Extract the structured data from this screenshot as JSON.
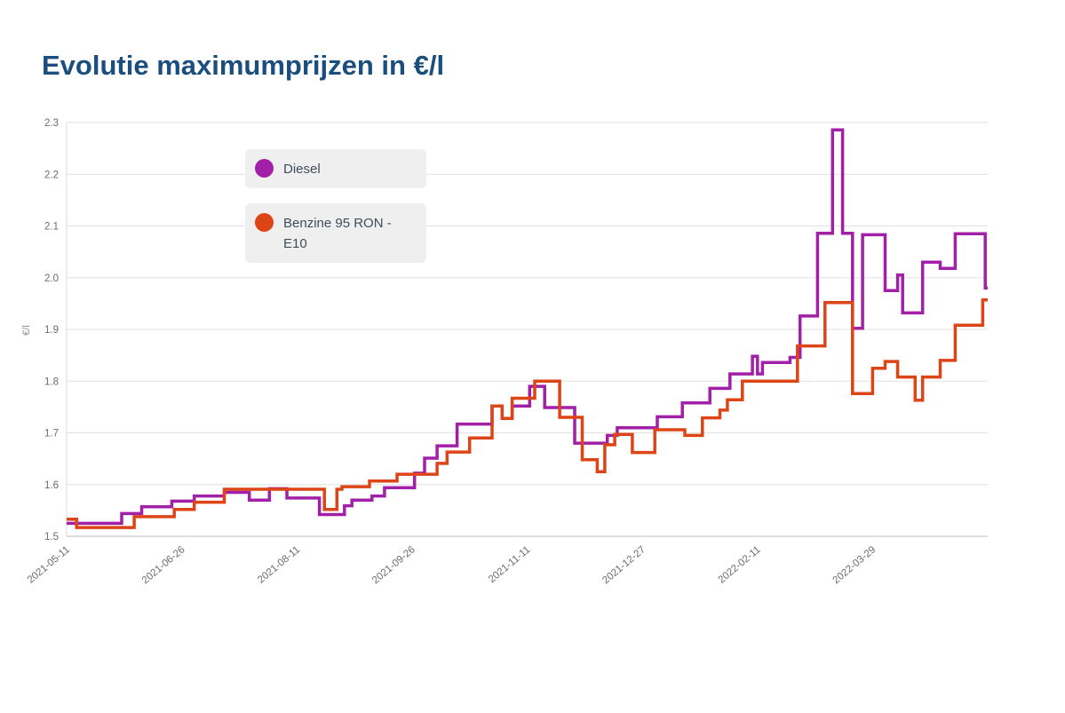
{
  "title": "Evolutie maximumprijzen in €/l",
  "legend": [
    {
      "label": "Diesel",
      "color": "#a21fa8"
    },
    {
      "label": "Benzine 95 RON - E10",
      "color": "#dd4517"
    }
  ],
  "chart_data": {
    "type": "line",
    "subtype": "step-after",
    "title": "Evolutie maximumprijzen in €/l",
    "xlabel": "",
    "ylabel": "€/l",
    "ylim": [
      1.5,
      2.3
    ],
    "ytick_step": 0.1,
    "grid": "horizontal",
    "legend_position": "top-left-inside",
    "x_unit": "days since 2021-05-11",
    "x_range_days": [
      0,
      368
    ],
    "xticks": [
      {
        "day": 0,
        "label": "2021-05-11"
      },
      {
        "day": 46,
        "label": "2021-06-26"
      },
      {
        "day": 92,
        "label": "2021-08-11"
      },
      {
        "day": 138,
        "label": "2021-09-26"
      },
      {
        "day": 184,
        "label": "2021-11-11"
      },
      {
        "day": 230,
        "label": "2021-12-27"
      },
      {
        "day": 276,
        "label": "2022-02-11"
      },
      {
        "day": 322,
        "label": "2022-03-29"
      }
    ],
    "series": [
      {
        "name": "Diesel",
        "color": "#a21fa8",
        "points": [
          [
            0,
            1.525
          ],
          [
            22,
            1.544
          ],
          [
            30,
            1.557
          ],
          [
            42,
            1.568
          ],
          [
            51,
            1.578
          ],
          [
            63,
            1.585
          ],
          [
            73,
            1.57
          ],
          [
            81,
            1.592
          ],
          [
            88,
            1.574
          ],
          [
            101,
            1.542
          ],
          [
            111,
            1.559
          ],
          [
            114,
            1.57
          ],
          [
            122,
            1.578
          ],
          [
            127,
            1.594
          ],
          [
            139,
            1.622
          ],
          [
            143,
            1.651
          ],
          [
            148,
            1.675
          ],
          [
            156,
            1.717
          ],
          [
            170,
            1.752
          ],
          [
            174,
            1.728
          ],
          [
            178,
            1.752
          ],
          [
            185,
            1.79
          ],
          [
            191,
            1.749
          ],
          [
            203,
            1.68
          ],
          [
            216,
            1.695
          ],
          [
            220,
            1.71
          ],
          [
            236,
            1.731
          ],
          [
            246,
            1.758
          ],
          [
            257,
            1.786
          ],
          [
            265,
            1.814
          ],
          [
            274,
            1.848
          ],
          [
            276,
            1.814
          ],
          [
            278,
            1.836
          ],
          [
            289,
            1.846
          ],
          [
            293,
            1.926
          ],
          [
            300,
            2.086
          ],
          [
            306,
            2.286
          ],
          [
            310,
            2.086
          ],
          [
            314,
            1.902
          ],
          [
            318,
            2.083
          ],
          [
            327,
            1.975
          ],
          [
            332,
            2.005
          ],
          [
            334,
            1.932
          ],
          [
            342,
            2.03
          ],
          [
            349,
            2.018
          ],
          [
            355,
            2.085
          ],
          [
            367,
            1.98
          ]
        ]
      },
      {
        "name": "Benzine 95 RON - E10",
        "color": "#dd4517",
        "points": [
          [
            0,
            1.533
          ],
          [
            4,
            1.517
          ],
          [
            27,
            1.538
          ],
          [
            43,
            1.552
          ],
          [
            51,
            1.566
          ],
          [
            63,
            1.591
          ],
          [
            103,
            1.552
          ],
          [
            108,
            1.591
          ],
          [
            110,
            1.596
          ],
          [
            121,
            1.607
          ],
          [
            132,
            1.62
          ],
          [
            148,
            1.641
          ],
          [
            152,
            1.663
          ],
          [
            161,
            1.69
          ],
          [
            170,
            1.752
          ],
          [
            174,
            1.728
          ],
          [
            178,
            1.767
          ],
          [
            187,
            1.8
          ],
          [
            197,
            1.73
          ],
          [
            206,
            1.648
          ],
          [
            212,
            1.625
          ],
          [
            215,
            1.677
          ],
          [
            219,
            1.697
          ],
          [
            226,
            1.662
          ],
          [
            235,
            1.706
          ],
          [
            247,
            1.695
          ],
          [
            254,
            1.729
          ],
          [
            261,
            1.744
          ],
          [
            264,
            1.764
          ],
          [
            270,
            1.8
          ],
          [
            292,
            1.868
          ],
          [
            303,
            1.952
          ],
          [
            314,
            1.776
          ],
          [
            322,
            1.825
          ],
          [
            327,
            1.838
          ],
          [
            332,
            1.808
          ],
          [
            339,
            1.763
          ],
          [
            342,
            1.808
          ],
          [
            349,
            1.84
          ],
          [
            355,
            1.908
          ],
          [
            366,
            1.957
          ]
        ]
      }
    ]
  }
}
